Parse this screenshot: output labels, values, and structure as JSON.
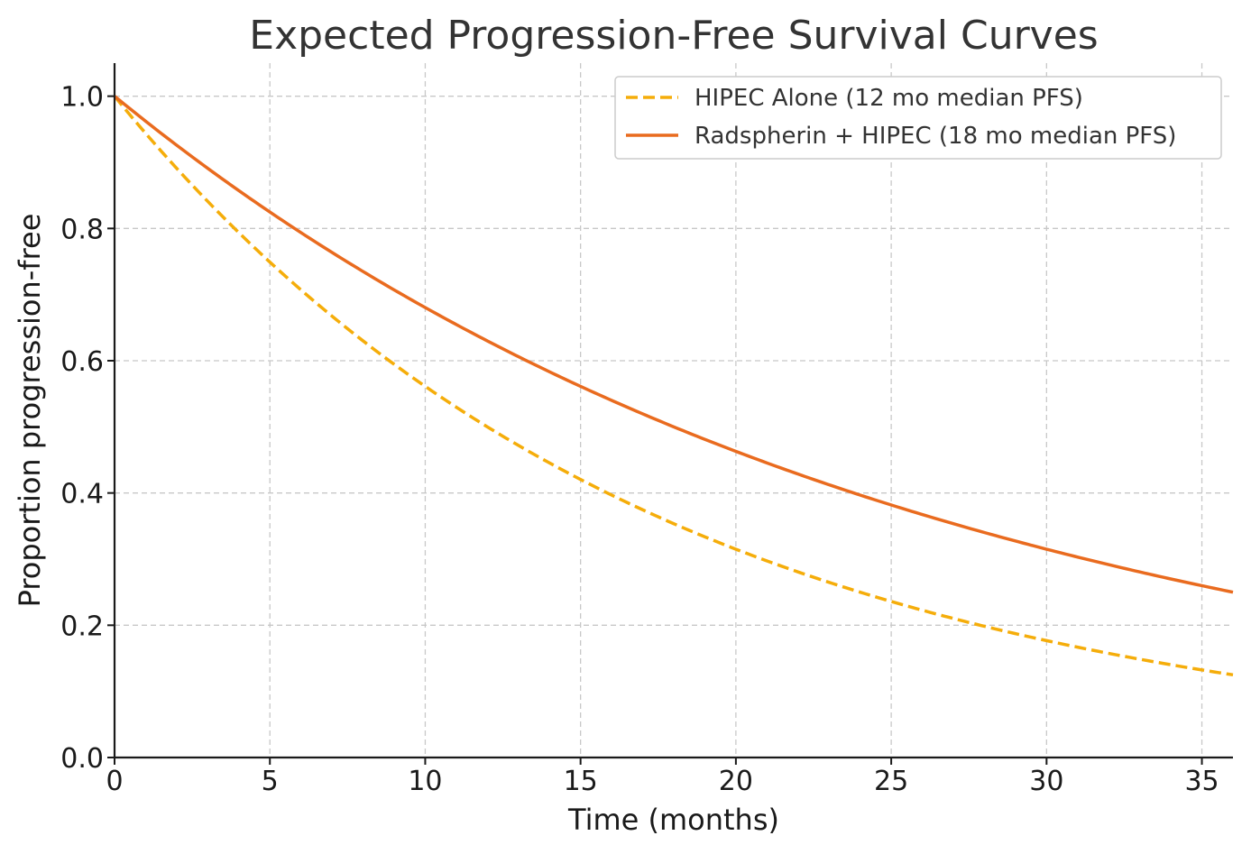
{
  "chart_data": {
    "type": "line",
    "title": "Expected Progression-Free Survival Curves",
    "xlabel": "Time (months)",
    "ylabel": "Proportion progression-free",
    "xlim": [
      0,
      36
    ],
    "ylim": [
      0,
      1.05
    ],
    "xticks": [
      0,
      5,
      10,
      15,
      20,
      25,
      30,
      35
    ],
    "xtick_labels": [
      "0",
      "5",
      "10",
      "15",
      "20",
      "25",
      "30",
      "35"
    ],
    "yticks": [
      0,
      0.2,
      0.4,
      0.6,
      0.8,
      1.0
    ],
    "ytick_labels": [
      "0.0",
      "0.2",
      "0.4",
      "0.6",
      "0.8",
      "1.0"
    ],
    "grid": true,
    "legend_position": "top-right",
    "series": [
      {
        "name": "HIPEC Alone (12 mo median PFS)",
        "color": "#f5ad0a",
        "style": "dashed",
        "x": [
          0,
          3,
          6,
          9,
          12,
          15,
          18,
          21,
          24,
          27,
          30,
          33,
          36
        ],
        "y": [
          1.0,
          0.841,
          0.707,
          0.595,
          0.5,
          0.42,
          0.354,
          0.297,
          0.25,
          0.21,
          0.177,
          0.149,
          0.125
        ]
      },
      {
        "name": "Radspherin + HIPEC (18 mo median PFS)",
        "color": "#e96b1f",
        "style": "solid",
        "x": [
          0,
          3,
          6,
          9,
          12,
          15,
          18,
          21,
          24,
          27,
          30,
          33,
          36
        ],
        "y": [
          1.0,
          0.891,
          0.794,
          0.707,
          0.63,
          0.561,
          0.5,
          0.445,
          0.397,
          0.354,
          0.315,
          0.281,
          0.25
        ]
      }
    ]
  }
}
